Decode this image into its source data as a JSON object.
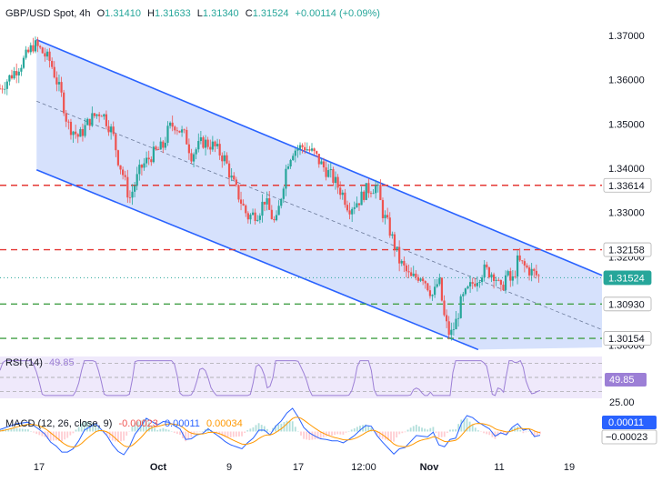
{
  "header": {
    "symbol": "GBP/USD Spot, 4h",
    "open_label": "O",
    "open": "1.31410",
    "high_label": "H",
    "high": "1.31633",
    "low_label": "L",
    "low": "1.31340",
    "close_label": "C",
    "close": "1.31524",
    "change": "+0.00114 (+0.09%)"
  },
  "colors": {
    "up": "#26a69a",
    "down": "#ef5350",
    "channel": "#2962ff",
    "channel_fill": "#cfdcfb",
    "resistance": "#e53935",
    "support": "#43a047",
    "rsi": "#9c7fd6",
    "macd": "#2962ff",
    "signal": "#ff9800"
  },
  "rsi": {
    "label": "RSI (14)",
    "value": "49.85",
    "tick_25": "25.00"
  },
  "macd": {
    "label": "MACD (12, 26, close, 9)",
    "v1": "-0.00023",
    "v2": "0.00011",
    "v3": "0.00034",
    "tag_top": "0.00011",
    "tag_bottom": "−0.00023"
  },
  "chart_data": {
    "type": "candlestick",
    "title": "GBP/USD Spot, 4h",
    "x_ticks": [
      "17",
      "Oct",
      "9",
      "17",
      "12:00",
      "Nov",
      "11",
      "19"
    ],
    "y_ticks": [
      "1.37000",
      "1.36000",
      "1.35000",
      "1.34000",
      "1.33000",
      "1.32000",
      "1.31000",
      "1.30000"
    ],
    "ylim": [
      1.2995,
      1.3735
    ],
    "price_levels": [
      {
        "value": 1.33614,
        "label": "1.33614",
        "style": "dashed",
        "color": "red"
      },
      {
        "value": 1.32158,
        "label": "1.32158",
        "style": "dashed",
        "color": "red"
      },
      {
        "value": 1.31524,
        "label": "1.31524",
        "style": "dotted",
        "color": "current"
      },
      {
        "value": 1.3093,
        "label": "1.30930",
        "style": "dashed",
        "color": "green"
      },
      {
        "value": 1.30154,
        "label": "1.30154",
        "style": "dashed",
        "color": "green"
      }
    ],
    "channel": {
      "upper": [
        [
          1.3725,
          0
        ],
        [
          1.3158,
          107
        ]
      ],
      "middle": [
        [
          1.3585,
          0
        ],
        [
          1.3035,
          107
        ]
      ],
      "lower": [
        [
          1.343,
          0
        ],
        [
          1.299,
          85
        ]
      ]
    },
    "price_path": [
      [
        0,
        1.358
      ],
      [
        2,
        1.361
      ],
      [
        4,
        1.364
      ],
      [
        6,
        1.368
      ],
      [
        7,
        1.367
      ],
      [
        9,
        1.364
      ],
      [
        11,
        1.356
      ],
      [
        12,
        1.35
      ],
      [
        14,
        1.347
      ],
      [
        16,
        1.351
      ],
      [
        18,
        1.353
      ],
      [
        20,
        1.348
      ],
      [
        21,
        1.342
      ],
      [
        22,
        1.338
      ],
      [
        23,
        1.333
      ],
      [
        25,
        1.34
      ],
      [
        27,
        1.343
      ],
      [
        29,
        1.345
      ],
      [
        30,
        1.349
      ],
      [
        31,
        1.35
      ],
      [
        33,
        1.347
      ],
      [
        34,
        1.343
      ],
      [
        36,
        1.346
      ],
      [
        38,
        1.345
      ],
      [
        40,
        1.342
      ],
      [
        41,
        1.338
      ],
      [
        43,
        1.332
      ],
      [
        44,
        1.329
      ],
      [
        46,
        1.33
      ],
      [
        47,
        1.333
      ],
      [
        49,
        1.327
      ],
      [
        50,
        1.334
      ],
      [
        51,
        1.341
      ],
      [
        52,
        1.344
      ],
      [
        54,
        1.345
      ],
      [
        56,
        1.343
      ],
      [
        57,
        1.341
      ],
      [
        59,
        1.338
      ],
      [
        61,
        1.334
      ],
      [
        62,
        1.331
      ],
      [
        64,
        1.333
      ],
      [
        65,
        1.335
      ],
      [
        67,
        1.336
      ],
      [
        68,
        1.33
      ],
      [
        69,
        1.327
      ],
      [
        70,
        1.323
      ],
      [
        71,
        1.319
      ],
      [
        73,
        1.315
      ],
      [
        75,
        1.316
      ],
      [
        77,
        1.311
      ],
      [
        78,
        1.315
      ],
      [
        79,
        1.306
      ],
      [
        80,
        1.302
      ],
      [
        81,
        1.305
      ],
      [
        82,
        1.31
      ],
      [
        84,
        1.314
      ],
      [
        86,
        1.317
      ],
      [
        88,
        1.316
      ],
      [
        89,
        1.312
      ],
      [
        90,
        1.316
      ],
      [
        91,
        1.314
      ],
      [
        92,
        1.319
      ],
      [
        94,
        1.317
      ],
      [
        96,
        1.3152
      ]
    ],
    "x_index_range": [
      0,
      107
    ],
    "rsi_panel": {
      "range": [
        20,
        80
      ],
      "guides": [
        30,
        50,
        70
      ]
    },
    "macd_panel": {
      "range": [
        -0.003,
        0.003
      ]
    }
  }
}
